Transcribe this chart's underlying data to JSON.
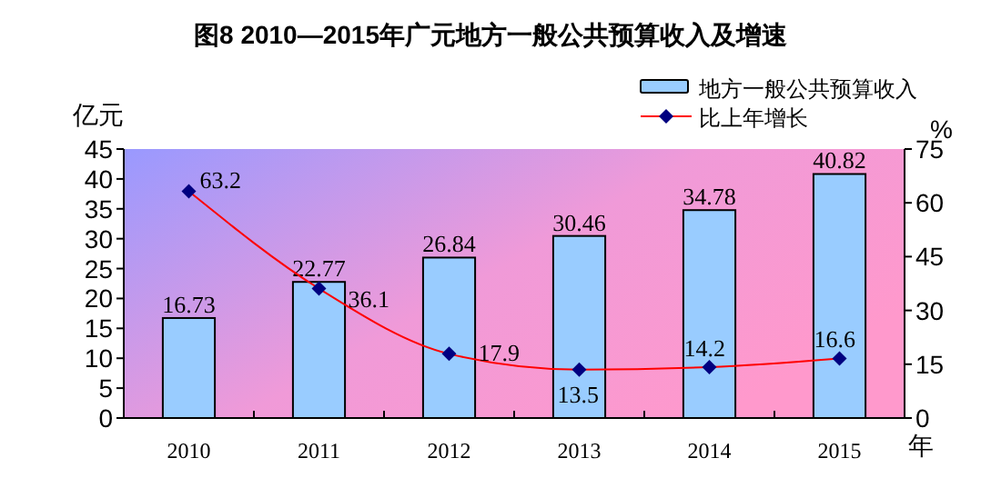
{
  "chart_data": {
    "type": "bar",
    "title": "图8  2010—2015年广元地方一般公共预算收入及增速",
    "categories": [
      "2010",
      "2011",
      "2012",
      "2013",
      "2014",
      "2015"
    ],
    "xlabel": "年",
    "ylabel": "亿元",
    "y2label": "%",
    "series": [
      {
        "name": "地方一般公共预算收入",
        "color": "#99ccff",
        "values": [
          16.73,
          22.77,
          26.84,
          30.46,
          34.78,
          40.82
        ]
      },
      {
        "name": "比上年增长",
        "type": "line",
        "axis": "y2",
        "color": "#ff0000",
        "marker": "diamond",
        "values": [
          63.2,
          36.1,
          17.9,
          13.5,
          14.2,
          16.6
        ]
      }
    ],
    "ylim": [
      0,
      45
    ],
    "yticks": [
      0,
      5,
      10,
      15,
      20,
      25,
      30,
      35,
      40,
      45
    ],
    "y2lim": [
      0,
      75
    ],
    "y2ticks": [
      0,
      15,
      30,
      45,
      60,
      75
    ],
    "data_labels": true,
    "legend": "top right",
    "grid": false
  }
}
